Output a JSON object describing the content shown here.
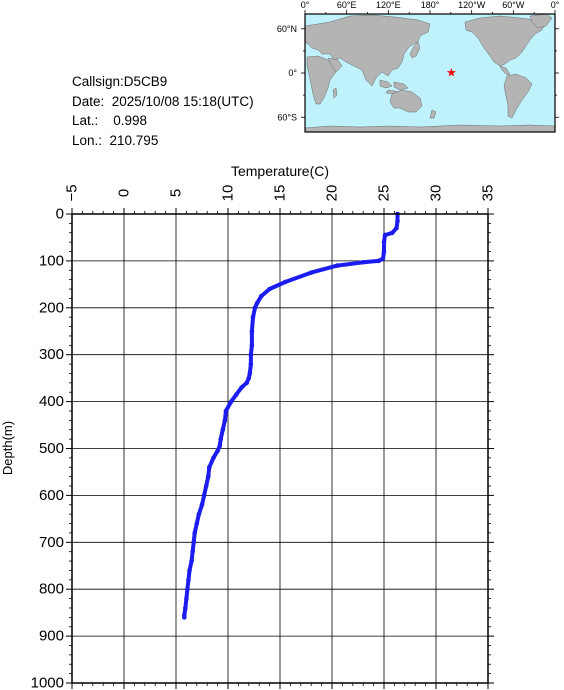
{
  "info": {
    "callsign": "Callsign:D5CB9",
    "date": "Date:  2025/10/08 15:18(UTC)",
    "lat": "Lat.:    0.998",
    "lon": "Lon.:  210.795"
  },
  "map": {
    "lon_labels": [
      "0°",
      "60°E",
      "120°E",
      "180°",
      "120°W",
      "60°W",
      "0°"
    ],
    "lat_labels": [
      "60°N",
      "0°",
      "60°S"
    ],
    "ocean_color": "#bff2fa",
    "land_color": "#b4b4b4",
    "marker_color": "#ff0000",
    "marker_lon": 210.795,
    "marker_lat": 0.998
  },
  "chart_data": {
    "type": "line",
    "xlabel": "Temperature(C)",
    "ylabel": "Depth(m)",
    "xlim": [
      -5,
      35
    ],
    "ylim": [
      1000,
      0
    ],
    "x_ticks": [
      "−5",
      "0",
      "5",
      "10",
      "15",
      "20",
      "25",
      "30",
      "35"
    ],
    "y_ticks": [
      "0",
      "100",
      "200",
      "300",
      "400",
      "500",
      "600",
      "700",
      "800",
      "900",
      "1000"
    ],
    "grid": true,
    "line_color": "#1c1cf0",
    "series": [
      {
        "x": [
          26.3,
          26.3,
          26.2,
          25.8,
          25.1,
          25.0,
          25.0,
          24.9,
          24.5,
          23.0,
          20.5,
          18.0,
          15.5,
          14.0,
          13.2,
          12.8,
          12.6,
          12.4,
          12.3,
          12.3,
          12.2,
          12.2,
          12.1,
          12.0,
          11.8,
          11.3,
          10.8,
          10.3,
          9.8,
          9.7,
          9.5,
          9.3,
          9.2,
          9.0,
          8.6,
          8.2,
          8.1,
          7.9,
          7.7,
          7.5,
          7.2,
          7.0,
          6.8,
          6.7,
          6.6,
          6.5,
          6.3,
          6.2,
          6.1,
          6.0,
          5.9,
          5.8,
          5.8
        ],
        "y": [
          0,
          15,
          30,
          40,
          45,
          60,
          80,
          95,
          100,
          103,
          110,
          125,
          145,
          160,
          175,
          190,
          200,
          220,
          250,
          280,
          300,
          320,
          340,
          350,
          360,
          370,
          385,
          400,
          420,
          440,
          460,
          480,
          495,
          505,
          520,
          540,
          560,
          580,
          600,
          620,
          640,
          660,
          680,
          700,
          720,
          740,
          760,
          780,
          800,
          820,
          840,
          855,
          860
        ]
      }
    ]
  }
}
